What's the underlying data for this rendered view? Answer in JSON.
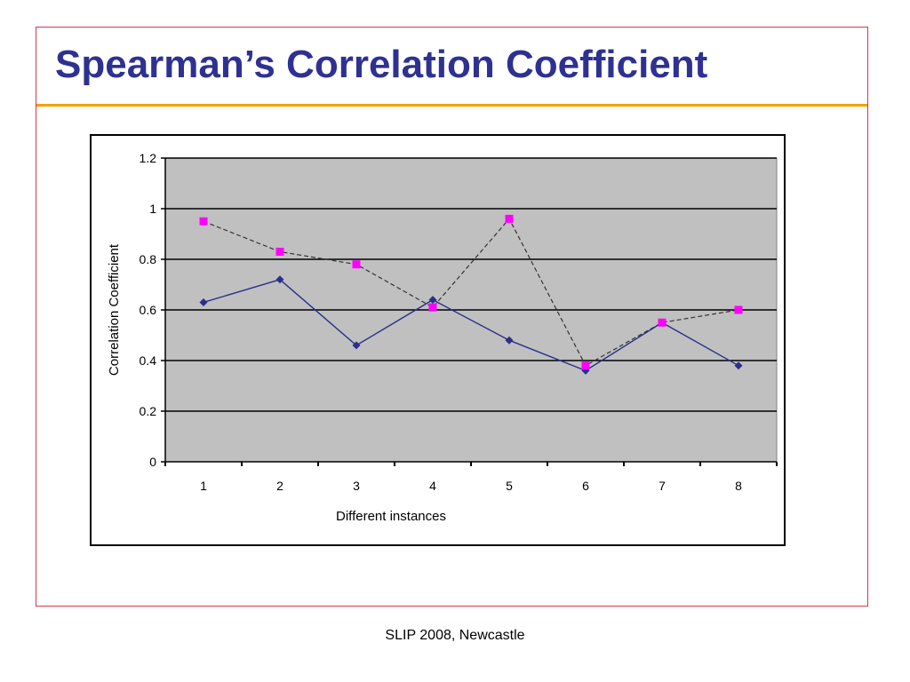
{
  "slide": {
    "title": "Spearman’s Correlation Coefficient",
    "footer": "SLIP 2008, Newcastle",
    "colors": {
      "title": "#2e3192",
      "title_rule": "#f4a000",
      "frame": "#d9364a"
    }
  },
  "chart_data": {
    "type": "line",
    "title": "",
    "xlabel": "Different instances",
    "ylabel": "Correlation Coefficient",
    "categories": [
      "1",
      "2",
      "3",
      "4",
      "5",
      "6",
      "7",
      "8"
    ],
    "ylim": [
      0,
      1.2
    ],
    "yticks": [
      "0",
      "0.2",
      "0.4",
      "0.6",
      "0.8",
      "1",
      "1.2"
    ],
    "grid": true,
    "legend": "none",
    "plot_background": "#c0c0c0",
    "series": [
      {
        "values": [
          0.63,
          0.72,
          0.46,
          0.64,
          0.48,
          0.36,
          0.55,
          0.38
        ],
        "color": "#2b2f8a",
        "line": "solid",
        "marker": "diamond"
      },
      {
        "values": [
          0.95,
          0.83,
          0.78,
          0.61,
          0.96,
          0.38,
          0.55,
          0.6
        ],
        "color": "#ff00ff",
        "line": "dashed",
        "line_color": "#333333",
        "marker": "square"
      }
    ]
  }
}
